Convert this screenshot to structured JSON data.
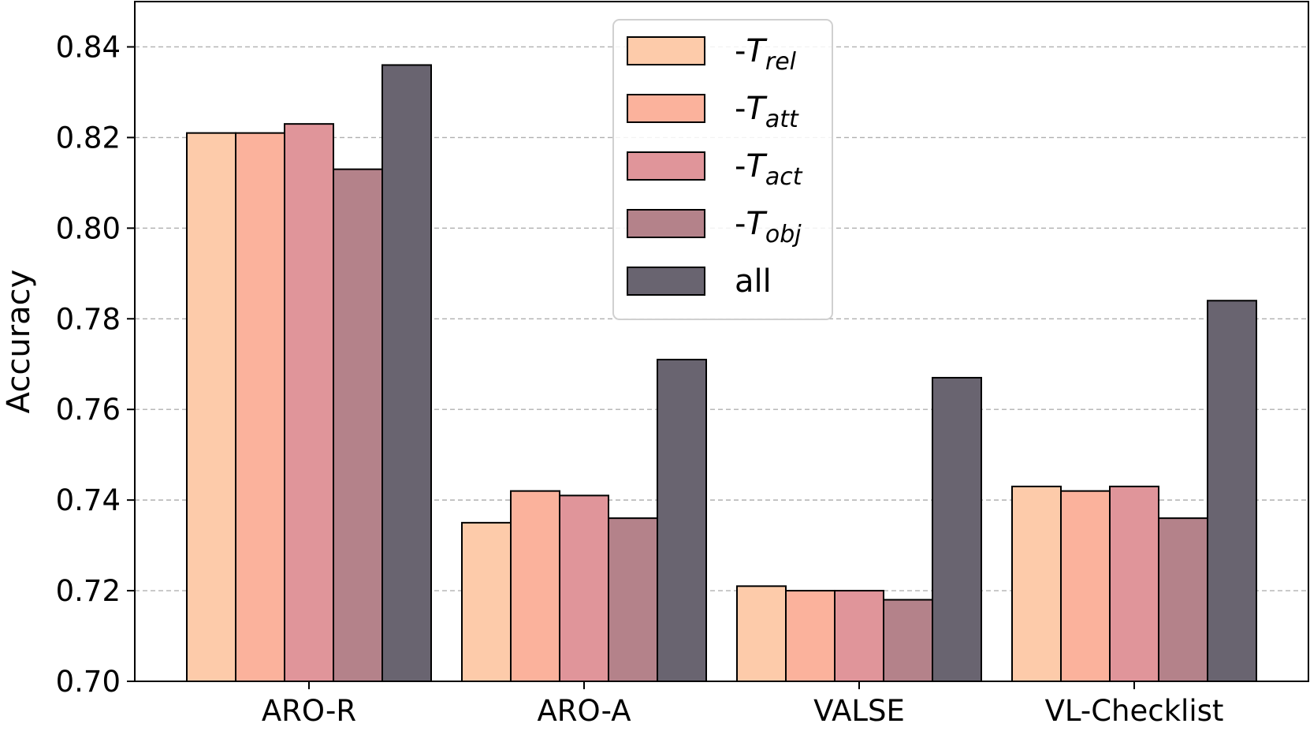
{
  "chart_data": {
    "type": "bar",
    "title": "",
    "xlabel": "",
    "ylabel": "Accuracy",
    "ylim": [
      0.7,
      0.85
    ],
    "yticks": [
      0.7,
      0.72,
      0.74,
      0.76,
      0.78,
      0.8,
      0.82,
      0.84
    ],
    "ytick_labels": [
      "0.70",
      "0.72",
      "0.74",
      "0.76",
      "0.78",
      "0.80",
      "0.82",
      "0.84"
    ],
    "grid": "y-dashed",
    "legend_position": "top-center",
    "categories": [
      "ARO-R",
      "ARO-A",
      "VALSE",
      "VL-Checklist"
    ],
    "series": [
      {
        "name": "-T",
        "name_sub": "rel",
        "color": "#fdcbaa",
        "values": [
          0.821,
          0.735,
          0.721,
          0.743
        ]
      },
      {
        "name": "-T",
        "name_sub": "att",
        "color": "#fbb29c",
        "values": [
          0.821,
          0.742,
          0.72,
          0.742
        ]
      },
      {
        "name": "-T",
        "name_sub": "act",
        "color": "#e0959a",
        "values": [
          0.823,
          0.741,
          0.72,
          0.743
        ]
      },
      {
        "name": "-T",
        "name_sub": "obj",
        "color": "#b4828a",
        "values": [
          0.813,
          0.736,
          0.718,
          0.736
        ]
      },
      {
        "name": "all",
        "name_sub": "",
        "color": "#696470",
        "values": [
          0.836,
          0.771,
          0.767,
          0.784
        ]
      }
    ]
  }
}
